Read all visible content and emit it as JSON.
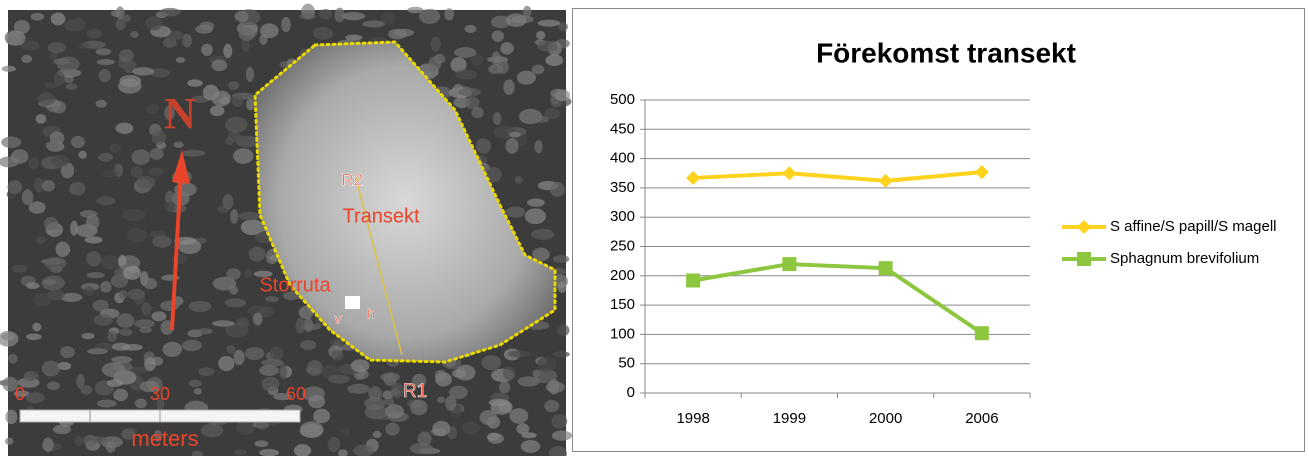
{
  "photo": {
    "labels": {
      "north": "N",
      "r2": "R2",
      "transect": "Transekt",
      "plot": "Storruta",
      "v": "v",
      "h": "h",
      "r1": "R1",
      "scale_0": "0",
      "scale_30": "30",
      "scale_60": "60",
      "unit": "meters"
    }
  },
  "chart_data": {
    "type": "line",
    "title": "Förekomst transekt",
    "categories": [
      "1998",
      "1999",
      "2000",
      "2006"
    ],
    "series": [
      {
        "name": "S affine/S papill/S magell",
        "color": "#ffd21e",
        "marker": "diamond",
        "values": [
          367,
          375,
          362,
          377
        ]
      },
      {
        "name": "Sphagnum brevifolium",
        "color": "#8dc63f",
        "marker": "square",
        "values": [
          192,
          220,
          213,
          102
        ]
      }
    ],
    "ylim": [
      0,
      500
    ],
    "yticks": [
      0,
      50,
      100,
      150,
      200,
      250,
      300,
      350,
      400,
      450,
      500
    ],
    "grid": true,
    "legend": "right"
  }
}
